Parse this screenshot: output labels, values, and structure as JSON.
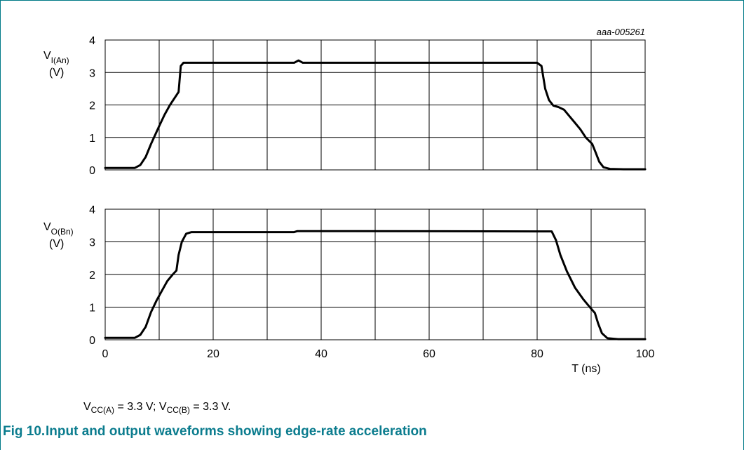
{
  "figure_code": "aaa-005261",
  "condition": {
    "parts": [
      "V",
      "CC(A)",
      " = 3.3 V; V",
      "CC(B)",
      " = 3.3 V."
    ]
  },
  "caption": {
    "label": "Fig 10.",
    "text": "Input and output waveforms showing edge-rate acceleration"
  },
  "colors": {
    "caption": "#0b7c8e",
    "frame": "#007a87",
    "trace": "#000000",
    "grid": "#000000"
  },
  "chart_data": [
    {
      "type": "line",
      "ylabel_main": "V",
      "ylabel_sub": "I(An)",
      "ylabel_unit": "(V)",
      "xlim": [
        0,
        100
      ],
      "ylim": [
        0,
        4
      ],
      "x_ticks": [
        0,
        10,
        20,
        30,
        40,
        50,
        60,
        70,
        80,
        90,
        100
      ],
      "y_ticks": [
        0,
        1,
        2,
        3,
        4
      ],
      "y_tick_labels": [
        "0",
        "1",
        "2",
        "3",
        "4"
      ],
      "grid": true,
      "series": [
        {
          "points": [
            [
              0,
              0.06
            ],
            [
              5.5,
              0.06
            ],
            [
              6.5,
              0.15
            ],
            [
              7.5,
              0.4
            ],
            [
              8.5,
              0.8
            ],
            [
              10,
              1.35
            ],
            [
              11,
              1.7
            ],
            [
              12,
              2.0
            ],
            [
              13,
              2.25
            ],
            [
              13.6,
              2.4
            ],
            [
              14,
              3.2
            ],
            [
              14.5,
              3.3
            ],
            [
              35,
              3.3
            ],
            [
              35.8,
              3.37
            ],
            [
              36.6,
              3.3
            ],
            [
              80,
              3.3
            ],
            [
              80.8,
              3.2
            ],
            [
              81.5,
              2.5
            ],
            [
              82.2,
              2.15
            ],
            [
              83,
              1.98
            ],
            [
              84,
              1.93
            ],
            [
              85,
              1.85
            ],
            [
              86,
              1.65
            ],
            [
              87,
              1.45
            ],
            [
              88,
              1.25
            ],
            [
              89,
              1.0
            ],
            [
              90.2,
              0.8
            ],
            [
              90.8,
              0.55
            ],
            [
              91.5,
              0.25
            ],
            [
              92.3,
              0.08
            ],
            [
              93.5,
              0.03
            ],
            [
              96,
              0.02
            ],
            [
              100,
              0.02
            ]
          ]
        }
      ]
    },
    {
      "type": "line",
      "ylabel_main": "V",
      "ylabel_sub": "O(Bn)",
      "ylabel_unit": "(V)",
      "xlabel": "T (ns)",
      "xlim": [
        0,
        100
      ],
      "ylim": [
        0,
        4
      ],
      "x_ticks": [
        0,
        10,
        20,
        30,
        40,
        50,
        60,
        70,
        80,
        90,
        100
      ],
      "x_tick_labels": [
        "0",
        "",
        "20",
        "",
        "40",
        "",
        "60",
        "",
        "80",
        "",
        "100"
      ],
      "y_ticks": [
        0,
        1,
        2,
        3,
        4
      ],
      "y_tick_labels": [
        "0",
        "1",
        "2",
        "3",
        "4"
      ],
      "grid": true,
      "series": [
        {
          "points": [
            [
              0,
              0.06
            ],
            [
              5.5,
              0.06
            ],
            [
              6.5,
              0.15
            ],
            [
              7.5,
              0.4
            ],
            [
              8.5,
              0.85
            ],
            [
              9.5,
              1.2
            ],
            [
              10.5,
              1.5
            ],
            [
              11.5,
              1.8
            ],
            [
              12.5,
              2.0
            ],
            [
              13.2,
              2.12
            ],
            [
              13.6,
              2.6
            ],
            [
              14.2,
              3.0
            ],
            [
              15,
              3.25
            ],
            [
              16,
              3.3
            ],
            [
              35,
              3.3
            ],
            [
              35.6,
              3.33
            ],
            [
              45,
              3.33
            ],
            [
              80,
              3.32
            ],
            [
              82.7,
              3.32
            ],
            [
              83.5,
              3.05
            ],
            [
              84.3,
              2.6
            ],
            [
              85.5,
              2.1
            ],
            [
              87,
              1.6
            ],
            [
              88.5,
              1.25
            ],
            [
              90,
              0.95
            ],
            [
              90.7,
              0.82
            ],
            [
              91.3,
              0.5
            ],
            [
              92,
              0.2
            ],
            [
              93,
              0.05
            ],
            [
              95,
              0.02
            ],
            [
              100,
              0.02
            ]
          ]
        }
      ]
    }
  ]
}
